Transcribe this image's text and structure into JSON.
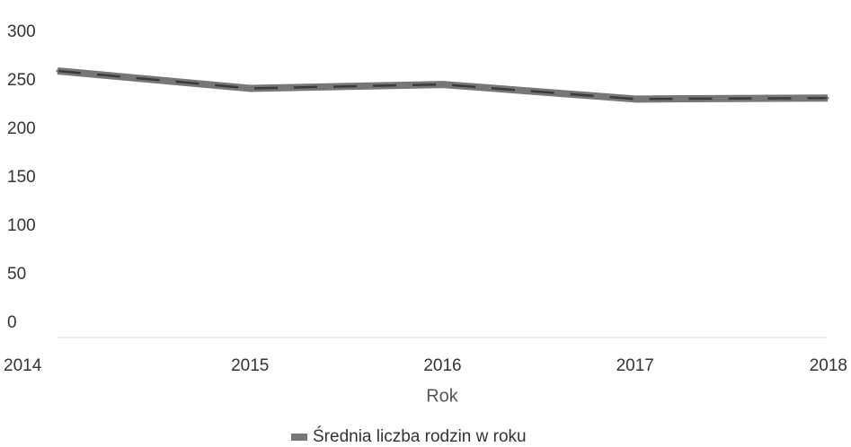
{
  "chart_data": {
    "type": "line",
    "x": [
      "2014",
      "2015",
      "2016",
      "2017",
      "2018"
    ],
    "series": [
      {
        "name": "Średnia liczba rodzin w roku",
        "values": [
          275,
          257,
          261,
          246,
          247
        ]
      }
    ],
    "xlabel": "Rok",
    "ylabel": "",
    "ylim": [
      0,
      300
    ],
    "yticks": [
      0,
      50,
      100,
      150,
      200,
      250,
      300
    ],
    "grid": false,
    "legend_position": "bottom-center",
    "line_style": "dashed",
    "colors": {
      "line": "#777777",
      "dash": "#3a3a3a",
      "axis": "#e6e6e6",
      "text": "#333333"
    }
  }
}
